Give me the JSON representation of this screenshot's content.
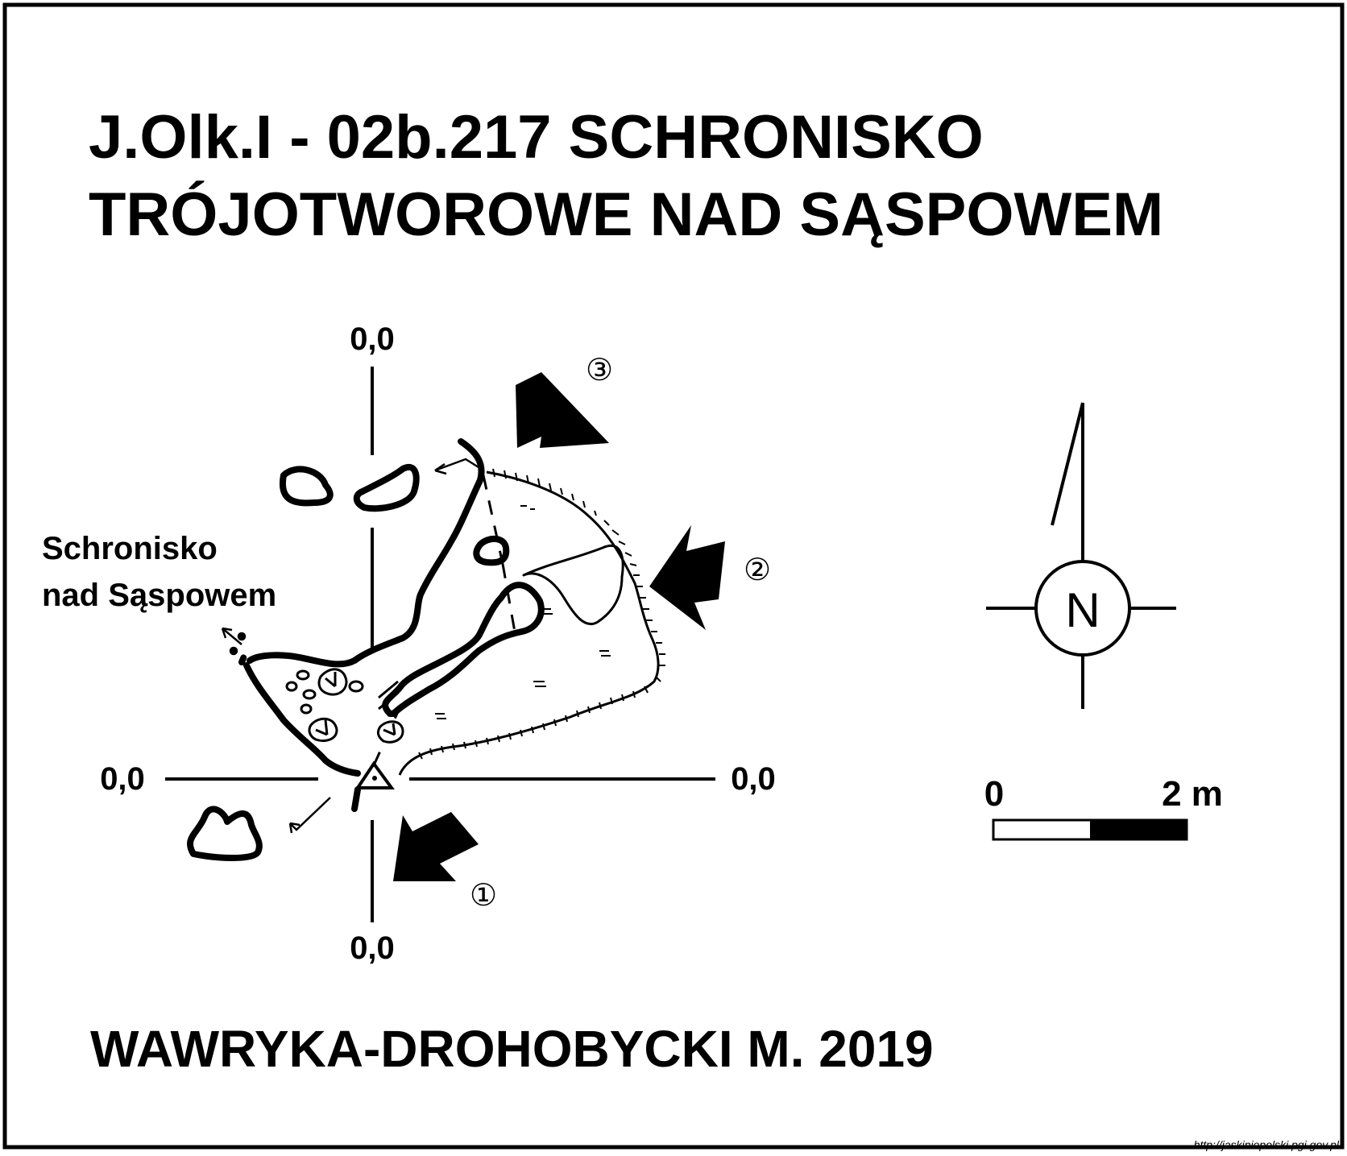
{
  "title": {
    "line1": "J.Olk.I - 02b.217  SCHRONISKO",
    "line2": "TRÓJOTWOROWE NAD SĄSPOWEM"
  },
  "coordinates": {
    "top": "0,0",
    "left": "0,0",
    "right": "0,0",
    "bottom": "0,0"
  },
  "neighbor_cave": {
    "line1": "Schronisko",
    "line2": "nad Sąspowem"
  },
  "entrances": [
    {
      "number": "①"
    },
    {
      "number": "②"
    },
    {
      "number": "③"
    }
  ],
  "compass": {
    "letter": "N"
  },
  "scale_bar": {
    "start_label": "0",
    "end_label": "2 m"
  },
  "author": "WAWRYKA-DROHOBYCKI M. 2019",
  "source_note": "http://jaskiniepolski.pgi.gov.pl",
  "colors": {
    "ink": "#000000",
    "paper": "#ffffff"
  }
}
